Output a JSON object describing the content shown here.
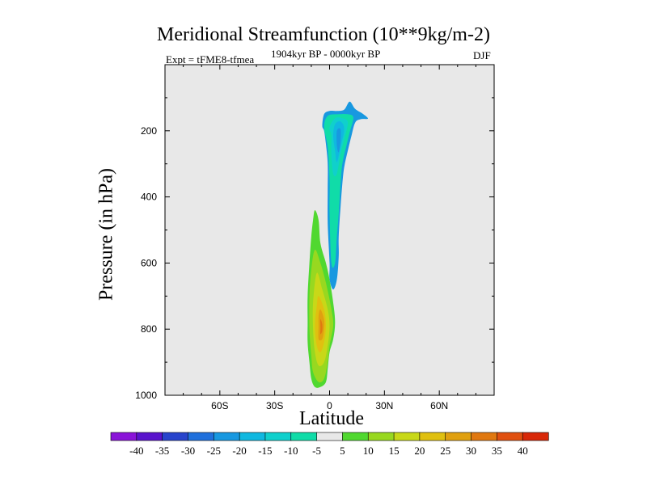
{
  "chart_data": {
    "type": "contour",
    "title": "Meridional Streamfunction (10**9kg/m-2)",
    "left_label": "Expt = tFME8-tfmea",
    "center_label": "1904kyr BP - 0000kyr BP",
    "right_label": "DJF",
    "xlabel": "Latitude",
    "ylabel": "Pressure (in hPa)",
    "xlim": [
      -90,
      90
    ],
    "ylim": [
      1000,
      0
    ],
    "xticks": [
      {
        "value": -60,
        "label": "60S"
      },
      {
        "value": -30,
        "label": "30S"
      },
      {
        "value": 0,
        "label": "0"
      },
      {
        "value": 30,
        "label": "30N"
      },
      {
        "value": 60,
        "label": "60N"
      }
    ],
    "yticks": [
      {
        "value": 200,
        "label": "200"
      },
      {
        "value": 400,
        "label": "400"
      },
      {
        "value": 600,
        "label": "600"
      },
      {
        "value": 800,
        "label": "800"
      },
      {
        "value": 1000,
        "label": "1000"
      }
    ],
    "colorbar": {
      "levels": [
        -40,
        -35,
        -30,
        -25,
        -20,
        -15,
        -10,
        -5,
        5,
        10,
        15,
        20,
        25,
        30,
        35,
        40
      ],
      "colors": [
        "#8a14d8",
        "#5a14cc",
        "#2844cc",
        "#2070dc",
        "#1898e0",
        "#10b8e0",
        "#10d0cc",
        "#10dca8",
        "#e8e8e8",
        "#50d830",
        "#98d820",
        "#c8d818",
        "#e0c010",
        "#e0a010",
        "#e07810",
        "#e05010",
        "#d82808"
      ]
    },
    "features": [
      {
        "name": "negative-cell",
        "value_range": [
          -25,
          -5
        ],
        "outline": [
          [
            -4,
            185
          ],
          [
            -3,
            150
          ],
          [
            0,
            140
          ],
          [
            4,
            140
          ],
          [
            8,
            136
          ],
          [
            11,
            112
          ],
          [
            14,
            134
          ],
          [
            18,
            148
          ],
          [
            21,
            163
          ],
          [
            17,
            165
          ],
          [
            14,
            175
          ],
          [
            12,
            215
          ],
          [
            10,
            260
          ],
          [
            8,
            310
          ],
          [
            7,
            360
          ],
          [
            6,
            430
          ],
          [
            5,
            520
          ],
          [
            5,
            580
          ],
          [
            4,
            650
          ],
          [
            2,
            680
          ],
          [
            0,
            650
          ],
          [
            0,
            600
          ],
          [
            -1,
            480
          ],
          [
            -1,
            380
          ],
          [
            -1,
            300
          ],
          [
            -2,
            240
          ],
          [
            -3,
            200
          ]
        ],
        "shade_levels": [
          {
            "value": -10,
            "outline": [
              [
                -3,
                190
              ],
              [
                -1,
                155
              ],
              [
                5,
                150
              ],
              [
                10,
                150
              ],
              [
                13,
                160
              ],
              [
                11,
                205
              ],
              [
                9,
                250
              ],
              [
                7,
                300
              ],
              [
                6,
                360
              ],
              [
                5,
                450
              ],
              [
                4,
                520
              ],
              [
                3,
                600
              ],
              [
                1,
                600
              ],
              [
                0,
                450
              ],
              [
                0,
                350
              ],
              [
                -1,
                250
              ]
            ]
          },
          {
            "value": -15,
            "outline": [
              [
                0,
                190
              ],
              [
                3,
                162
              ],
              [
                7,
                162
              ],
              [
                10,
                175
              ],
              [
                8,
                225
              ],
              [
                6,
                270
              ],
              [
                4,
                330
              ],
              [
                2,
                330
              ],
              [
                1,
                270
              ],
              [
                1,
                215
              ]
            ]
          },
          {
            "value": -20,
            "outline": [
              [
                3,
                180
              ],
              [
                6,
                172
              ],
              [
                8,
                195
              ],
              [
                6,
                250
              ],
              [
                4,
                295
              ],
              [
                3,
                260
              ],
              [
                2,
                215
              ]
            ]
          },
          {
            "value": -25,
            "outline": [
              [
                4,
                200
              ],
              [
                6,
                195
              ],
              [
                6,
                230
              ],
              [
                5,
                265
              ],
              [
                4,
                245
              ]
            ]
          }
        ]
      },
      {
        "name": "positive-cell",
        "value_range": [
          5,
          30
        ],
        "outline": [
          [
            -8,
            440
          ],
          [
            -6,
            470
          ],
          [
            -5,
            540
          ],
          [
            -2,
            600
          ],
          [
            0,
            650
          ],
          [
            2,
            720
          ],
          [
            3,
            780
          ],
          [
            2,
            830
          ],
          [
            0,
            870
          ],
          [
            -1,
            920
          ],
          [
            -2,
            960
          ],
          [
            -5,
            975
          ],
          [
            -8,
            975
          ],
          [
            -10,
            950
          ],
          [
            -11,
            900
          ],
          [
            -12,
            840
          ],
          [
            -12,
            780
          ],
          [
            -12,
            700
          ],
          [
            -11,
            600
          ],
          [
            -10,
            520
          ],
          [
            -9,
            470
          ]
        ],
        "shade_levels": [
          {
            "value": 10,
            "outline": [
              [
                -8,
                560
              ],
              [
                -5,
                600
              ],
              [
                -2,
                660
              ],
              [
                1,
                740
              ],
              [
                2,
                790
              ],
              [
                0,
                850
              ],
              [
                -1,
                900
              ],
              [
                -3,
                950
              ],
              [
                -6,
                960
              ],
              [
                -9,
                930
              ],
              [
                -10,
                880
              ],
              [
                -11,
                800
              ],
              [
                -11,
                700
              ],
              [
                -10,
                620
              ]
            ]
          },
          {
            "value": 15,
            "outline": [
              [
                -7,
                630
              ],
              [
                -4,
                680
              ],
              [
                -1,
                740
              ],
              [
                0,
                790
              ],
              [
                -1,
                850
              ],
              [
                -3,
                900
              ],
              [
                -6,
                910
              ],
              [
                -8,
                870
              ],
              [
                -9,
                800
              ],
              [
                -9,
                720
              ]
            ]
          },
          {
            "value": 20,
            "outline": [
              [
                -6,
                700
              ],
              [
                -3,
                740
              ],
              [
                -2,
                790
              ],
              [
                -3,
                840
              ],
              [
                -5,
                870
              ],
              [
                -7,
                850
              ],
              [
                -8,
                790
              ],
              [
                -7,
                730
              ]
            ]
          },
          {
            "value": 25,
            "outline": [
              [
                -5,
                740
              ],
              [
                -3,
                770
              ],
              [
                -3,
                800
              ],
              [
                -4,
                830
              ],
              [
                -6,
                830
              ],
              [
                -6,
                790
              ],
              [
                -6,
                760
              ]
            ]
          },
          {
            "value": 30,
            "outline": [
              [
                -5,
                770
              ],
              [
                -4,
                785
              ],
              [
                -4,
                805
              ],
              [
                -5,
                815
              ],
              [
                -5,
                795
              ]
            ]
          }
        ]
      }
    ]
  }
}
